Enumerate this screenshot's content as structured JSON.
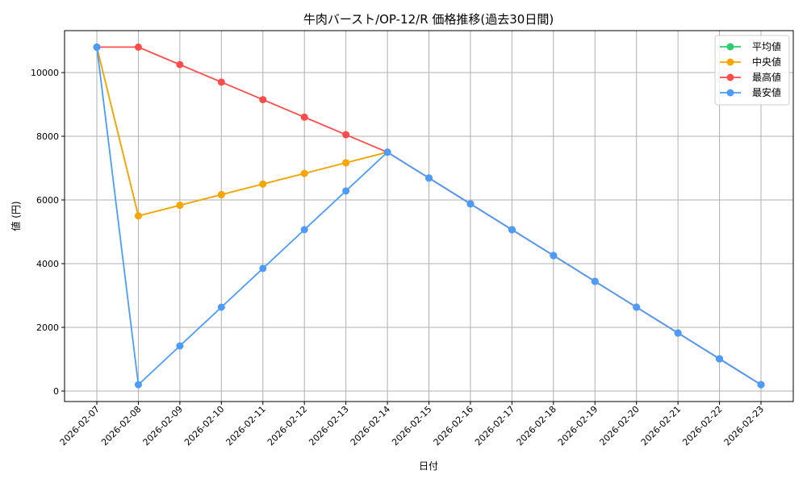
{
  "chart_data": {
    "type": "line",
    "title": "牛肉バースト/OP-12/R 価格推移(過去30日間)",
    "xlabel": "日付",
    "ylabel": "値 (円)",
    "ylim": [
      -300,
      11300
    ],
    "yticks": [
      0,
      2000,
      4000,
      6000,
      8000,
      10000
    ],
    "grid": true,
    "legend_placement": "top-right",
    "categories": [
      "2026-02-07",
      "2026-02-08",
      "2026-02-09",
      "2026-02-10",
      "2026-02-11",
      "2026-02-12",
      "2026-02-13",
      "2026-02-14",
      "2026-02-15",
      "2026-02-16",
      "2026-02-17",
      "2026-02-18",
      "2026-02-19",
      "2026-02-20",
      "2026-02-21",
      "2026-02-22",
      "2026-02-23"
    ],
    "series": [
      {
        "name": "平均値",
        "color": "#2ecc71",
        "values": [
          10800,
          5500,
          5833,
          6167,
          6500,
          6833,
          7167,
          7500,
          6689,
          5878,
          5067,
          4256,
          3444,
          2633,
          1822,
          1011,
          200
        ]
      },
      {
        "name": "中央値",
        "color": "#ffa500",
        "values": [
          10800,
          5500,
          5833,
          6167,
          6500,
          6833,
          7167,
          7500,
          6689,
          5878,
          5067,
          4256,
          3444,
          2633,
          1822,
          1011,
          200
        ]
      },
      {
        "name": "最高値",
        "color": "#ff4c4c",
        "values": [
          10800,
          10800,
          10250,
          9700,
          9150,
          8600,
          8050,
          7500,
          6689,
          5878,
          5067,
          4256,
          3444,
          2633,
          1822,
          1011,
          200
        ]
      },
      {
        "name": "最安値",
        "color": "#4c9cff",
        "values": [
          10800,
          200,
          1417,
          2633,
          3850,
          5067,
          6283,
          7500,
          6689,
          5878,
          5067,
          4256,
          3444,
          2633,
          1822,
          1011,
          200
        ]
      }
    ]
  }
}
